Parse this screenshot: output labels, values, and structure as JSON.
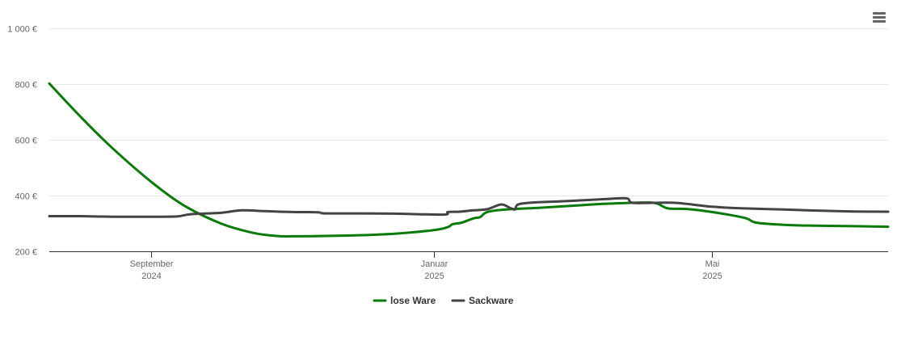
{
  "chart_data": {
    "type": "line",
    "title": "",
    "xlabel": "",
    "ylabel": "",
    "ylim": [
      200,
      1000
    ],
    "y_ticks": [
      {
        "value": 200,
        "label": "200 €"
      },
      {
        "value": 400,
        "label": "400 €"
      },
      {
        "value": 600,
        "label": "600 €"
      },
      {
        "value": 800,
        "label": "800 €"
      },
      {
        "value": 1000,
        "label": "1 000 €"
      }
    ],
    "xlim": [
      "2024-07-19",
      "2025-07-16"
    ],
    "x_ticks": [
      {
        "date": "2024-09-01",
        "line1": "September",
        "line2": "2024"
      },
      {
        "date": "2025-01-01",
        "line1": "Januar",
        "line2": "2025"
      },
      {
        "date": "2025-05-01",
        "line1": "Mai",
        "line2": "2025"
      }
    ],
    "grid": true,
    "legend_position": "bottom-center",
    "series": [
      {
        "name": "lose Ware",
        "color": "#0a7a0a",
        "points": [
          [
            "2024-07-19",
            802
          ],
          [
            "2024-08-01",
            687
          ],
          [
            "2024-08-15",
            572
          ],
          [
            "2024-09-01",
            449
          ],
          [
            "2024-09-15",
            365
          ],
          [
            "2024-10-01",
            300
          ],
          [
            "2024-10-15",
            266
          ],
          [
            "2024-10-25",
            255
          ],
          [
            "2024-11-01",
            254
          ],
          [
            "2024-11-15",
            255
          ],
          [
            "2024-12-01",
            258
          ],
          [
            "2024-12-15",
            263
          ],
          [
            "2025-01-01",
            276
          ],
          [
            "2025-01-07",
            287
          ],
          [
            "2025-01-09",
            297
          ],
          [
            "2025-01-13",
            303
          ],
          [
            "2025-01-18",
            318
          ],
          [
            "2025-01-21",
            323
          ],
          [
            "2025-01-24",
            341
          ],
          [
            "2025-02-01",
            350
          ],
          [
            "2025-02-15",
            356
          ],
          [
            "2025-03-01",
            363
          ],
          [
            "2025-03-15",
            370
          ],
          [
            "2025-04-01",
            375
          ],
          [
            "2025-04-07",
            372
          ],
          [
            "2025-04-12",
            354
          ],
          [
            "2025-04-20",
            352
          ],
          [
            "2025-05-01",
            341
          ],
          [
            "2025-05-15",
            320
          ],
          [
            "2025-05-20",
            303
          ],
          [
            "2025-06-01",
            295
          ],
          [
            "2025-06-15",
            292
          ],
          [
            "2025-07-01",
            290
          ],
          [
            "2025-07-16",
            288
          ]
        ]
      },
      {
        "name": "Sackware",
        "color": "#434343",
        "points": [
          [
            "2024-07-19",
            326
          ],
          [
            "2024-08-01",
            326
          ],
          [
            "2024-08-15",
            324
          ],
          [
            "2024-09-01",
            324
          ],
          [
            "2024-09-12",
            325
          ],
          [
            "2024-09-18",
            333
          ],
          [
            "2024-10-01",
            338
          ],
          [
            "2024-10-10",
            347
          ],
          [
            "2024-10-20",
            344
          ],
          [
            "2024-11-01",
            341
          ],
          [
            "2024-11-12",
            340
          ],
          [
            "2024-11-15",
            336
          ],
          [
            "2024-12-01",
            336
          ],
          [
            "2024-12-15",
            335
          ],
          [
            "2024-12-25",
            333
          ],
          [
            "2025-01-06",
            332
          ],
          [
            "2025-01-07",
            341
          ],
          [
            "2025-01-12",
            342
          ],
          [
            "2025-01-18",
            347
          ],
          [
            "2025-01-24",
            351
          ],
          [
            "2025-01-30",
            368
          ],
          [
            "2025-02-03",
            355
          ],
          [
            "2025-02-05",
            350
          ],
          [
            "2025-02-06",
            367
          ],
          [
            "2025-02-10",
            373
          ],
          [
            "2025-02-15",
            376
          ],
          [
            "2025-03-01",
            381
          ],
          [
            "2025-03-15",
            387
          ],
          [
            "2025-03-25",
            390
          ],
          [
            "2025-03-27",
            375
          ],
          [
            "2025-04-01",
            373
          ],
          [
            "2025-04-15",
            374
          ],
          [
            "2025-05-01",
            360
          ],
          [
            "2025-05-15",
            354
          ],
          [
            "2025-06-01",
            350
          ],
          [
            "2025-06-15",
            346
          ],
          [
            "2025-07-01",
            343
          ],
          [
            "2025-07-16",
            342
          ]
        ]
      }
    ]
  },
  "icons": {
    "menu": "hamburger-menu-icon"
  }
}
